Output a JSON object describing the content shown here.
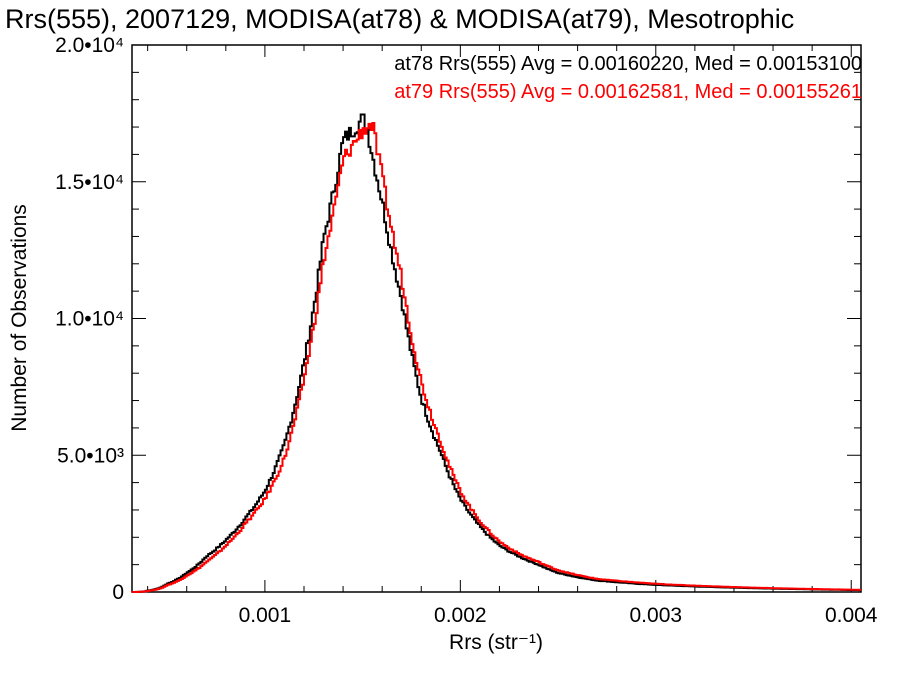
{
  "chart_data": {
    "type": "line",
    "title": "Rrs(555), 2007129, MODISA(at78) & MODISA(at79), Mesotrophic",
    "xlabel": "Rrs (str⁻¹)",
    "ylabel": "Number of Observations",
    "xlim": [
      0.00032,
      0.00405
    ],
    "ylim": [
      0,
      20000
    ],
    "x_ticks": [
      {
        "value": 0.001,
        "label": "0.001"
      },
      {
        "value": 0.002,
        "label": "0.002"
      },
      {
        "value": 0.003,
        "label": "0.003"
      },
      {
        "value": 0.004,
        "label": "0.004"
      }
    ],
    "y_ticks": [
      {
        "value": 0,
        "label": "0"
      },
      {
        "value": 5000,
        "label": "5.0•10³"
      },
      {
        "value": 10000,
        "label": "1.0•10⁴"
      },
      {
        "value": 15000,
        "label": "1.5•10⁴"
      },
      {
        "value": 20000,
        "label": "2.0•10⁴"
      }
    ],
    "grid": false,
    "series": [
      {
        "name": "at78",
        "color": "#000000",
        "legend": "at78 Rrs(555) Avg = 0.00160220, Med = 0.00153100",
        "x": [
          0.00032,
          0.0004,
          0.0005,
          0.0006,
          0.0007,
          0.0008,
          0.0009,
          0.001,
          0.0011,
          0.0012,
          0.0013,
          0.0014,
          0.0015,
          0.00152,
          0.0016,
          0.0017,
          0.0018,
          0.0019,
          0.002,
          0.0021,
          0.0022,
          0.0023,
          0.0024,
          0.0025,
          0.0027,
          0.003,
          0.0035,
          0.00405
        ],
        "y": [
          0,
          50,
          300,
          700,
          1300,
          1900,
          2700,
          3700,
          5400,
          8400,
          12900,
          16500,
          17300,
          17100,
          14300,
          10700,
          7100,
          5100,
          3400,
          2400,
          1700,
          1300,
          1000,
          700,
          420,
          260,
          140,
          70
        ]
      },
      {
        "name": "at79",
        "color": "#ff0000",
        "legend": "at79 Rrs(555) Avg = 0.00162581, Med = 0.00155261",
        "x": [
          0.00032,
          0.0004,
          0.0005,
          0.0006,
          0.0007,
          0.0008,
          0.0009,
          0.001,
          0.0011,
          0.0012,
          0.0013,
          0.0014,
          0.0015,
          0.00155,
          0.0016,
          0.0017,
          0.0018,
          0.0019,
          0.002,
          0.0021,
          0.0022,
          0.0023,
          0.0024,
          0.0025,
          0.0027,
          0.003,
          0.0035,
          0.00405
        ],
        "y": [
          0,
          40,
          250,
          600,
          1100,
          1700,
          2500,
          3400,
          4900,
          7800,
          12100,
          15800,
          16900,
          17100,
          15200,
          11500,
          7700,
          5500,
          3700,
          2600,
          1850,
          1400,
          1100,
          800,
          480,
          300,
          160,
          80
        ]
      }
    ]
  }
}
